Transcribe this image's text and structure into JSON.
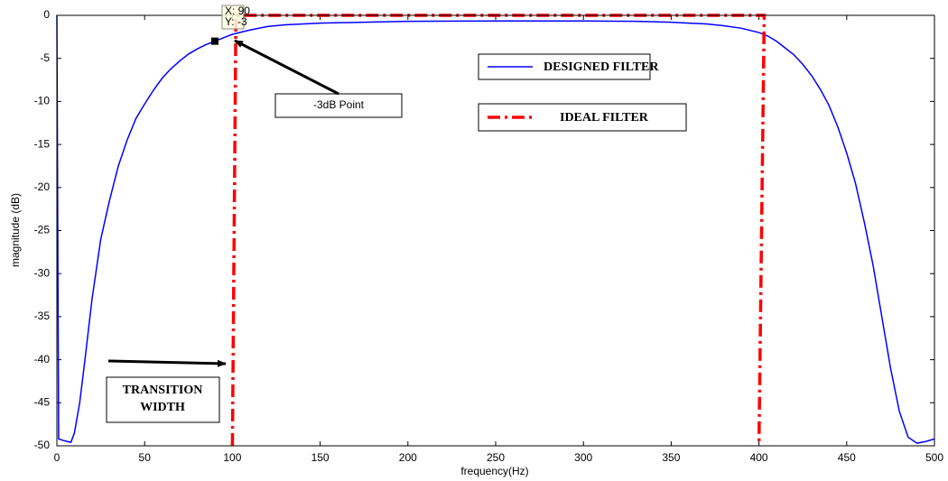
{
  "chart_data": {
    "type": "line",
    "xlabel": "frequency(Hz)",
    "ylabel": "magnitude (dB)",
    "xlim": [
      0,
      500
    ],
    "ylim": [
      -50,
      0
    ],
    "xticks": [
      0,
      50,
      100,
      150,
      200,
      250,
      300,
      350,
      400,
      450,
      500
    ],
    "yticks": [
      -50,
      -45,
      -40,
      -35,
      -30,
      -25,
      -20,
      -15,
      -10,
      -5,
      0
    ],
    "series": [
      {
        "name": "DESIGNED FILTER",
        "color": "#0000ff",
        "style": "solid",
        "x": [
          0,
          1,
          4,
          8,
          10,
          13,
          16,
          20,
          25,
          30,
          35,
          40,
          45,
          50,
          55,
          60,
          65,
          70,
          75,
          80,
          85,
          90,
          95,
          100,
          110,
          120,
          130,
          150,
          175,
          200,
          250,
          300,
          330,
          350,
          360,
          370,
          380,
          390,
          400,
          405,
          410,
          415,
          420,
          425,
          430,
          435,
          440,
          445,
          450,
          455,
          460,
          465,
          470,
          475,
          480,
          485,
          490,
          495,
          500
        ],
        "values": [
          0,
          -49.2,
          -49.4,
          -49.6,
          -48.5,
          -45,
          -40,
          -33,
          -26,
          -21.5,
          -17.5,
          -14.5,
          -12,
          -10.3,
          -8.7,
          -7.3,
          -6.2,
          -5.3,
          -4.5,
          -3.9,
          -3.4,
          -3,
          -2.6,
          -2.2,
          -1.7,
          -1.3,
          -1.1,
          -0.9,
          -0.8,
          -0.7,
          -0.65,
          -0.65,
          -0.7,
          -0.8,
          -0.9,
          -1,
          -1.2,
          -1.5,
          -2,
          -2.4,
          -3,
          -3.8,
          -4.6,
          -5.7,
          -7,
          -8.6,
          -10.5,
          -13,
          -16,
          -19.5,
          -24,
          -29,
          -35,
          -41,
          -46,
          -49,
          -49.7,
          -49.5,
          -49.2
        ]
      },
      {
        "name": "IDEAL FILTER",
        "color": "#ff0000",
        "style": "dashdot",
        "x": [
          100,
          102,
          403,
          400
        ],
        "values": [
          -50,
          0,
          0,
          -50
        ]
      }
    ],
    "datatip": {
      "x": 90,
      "y": -3,
      "labels": [
        "X: 90",
        "Y: -3"
      ]
    },
    "annotations": {
      "point": "-3dB Point",
      "transition": [
        "TRANSITION",
        "WIDTH"
      ]
    }
  }
}
